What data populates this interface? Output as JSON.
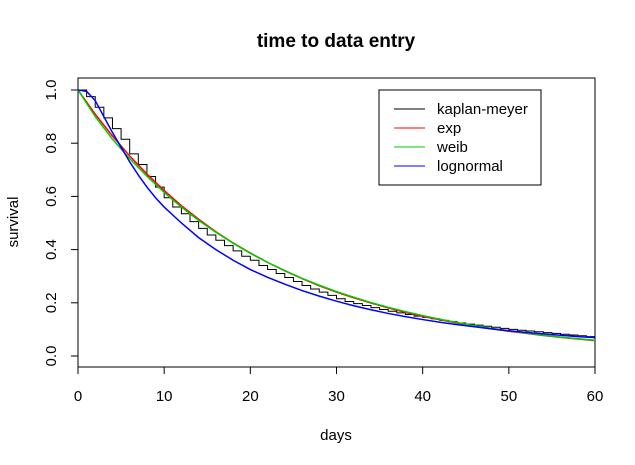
{
  "chart_data": {
    "type": "line",
    "title": "time to data entry",
    "xlabel": "days",
    "ylabel": "survival",
    "xlim": [
      0,
      60
    ],
    "ylim": [
      0,
      1
    ],
    "xticks": [
      "0",
      "10",
      "20",
      "30",
      "40",
      "50",
      "60"
    ],
    "yticks": [
      "0.0",
      "0.2",
      "0.4",
      "0.6",
      "0.8",
      "1.0"
    ],
    "grid": false,
    "legend_position": "top-right",
    "series": [
      {
        "name": "kaplan-meyer",
        "color": "#000000",
        "style": "step",
        "x": [
          0,
          1,
          2,
          3,
          4,
          5,
          6,
          7,
          8,
          9,
          10,
          11,
          12,
          13,
          14,
          15,
          16,
          17,
          18,
          19,
          20,
          21,
          22,
          23,
          24,
          25,
          26,
          27,
          28,
          29,
          30,
          31,
          32,
          33,
          34,
          35,
          36,
          37,
          38,
          39,
          40,
          41,
          42,
          43,
          44,
          45,
          46,
          47,
          48,
          49,
          50,
          51,
          52,
          53,
          54,
          55,
          56,
          57,
          58,
          59,
          60
        ],
        "y": [
          1.0,
          0.975,
          0.935,
          0.895,
          0.855,
          0.815,
          0.76,
          0.72,
          0.675,
          0.635,
          0.595,
          0.56,
          0.535,
          0.505,
          0.48,
          0.455,
          0.435,
          0.415,
          0.395,
          0.375,
          0.36,
          0.34,
          0.325,
          0.31,
          0.295,
          0.28,
          0.265,
          0.252,
          0.24,
          0.228,
          0.215,
          0.205,
          0.197,
          0.19,
          0.182,
          0.175,
          0.168,
          0.162,
          0.156,
          0.15,
          0.145,
          0.14,
          0.134,
          0.129,
          0.124,
          0.12,
          0.116,
          0.112,
          0.108,
          0.104,
          0.1,
          0.097,
          0.094,
          0.091,
          0.088,
          0.085,
          0.082,
          0.079,
          0.076,
          0.073,
          0.07
        ]
      },
      {
        "name": "exp",
        "color": "#ff0000",
        "style": "line",
        "x": [
          0,
          2,
          4,
          6,
          8,
          10,
          12,
          14,
          16,
          18,
          20,
          22,
          24,
          26,
          28,
          30,
          32,
          34,
          36,
          38,
          40,
          42,
          44,
          46,
          48,
          50,
          52,
          54,
          56,
          58,
          60
        ],
        "y": [
          1.0,
          0.909,
          0.827,
          0.752,
          0.684,
          0.622,
          0.565,
          0.514,
          0.467,
          0.425,
          0.387,
          0.352,
          0.32,
          0.291,
          0.264,
          0.24,
          0.219,
          0.199,
          0.181,
          0.164,
          0.149,
          0.136,
          0.124,
          0.112,
          0.102,
          0.093,
          0.085,
          0.077,
          0.07,
          0.064,
          0.058
        ]
      },
      {
        "name": "weib",
        "color": "#00cc00",
        "style": "line",
        "x": [
          0,
          2,
          4,
          6,
          8,
          10,
          12,
          14,
          16,
          18,
          20,
          22,
          24,
          26,
          28,
          30,
          32,
          34,
          36,
          38,
          40,
          42,
          44,
          46,
          48,
          50,
          52,
          54,
          56,
          58,
          60
        ],
        "y": [
          1.0,
          0.9,
          0.815,
          0.742,
          0.676,
          0.615,
          0.56,
          0.51,
          0.465,
          0.424,
          0.386,
          0.352,
          0.321,
          0.292,
          0.266,
          0.242,
          0.221,
          0.201,
          0.183,
          0.167,
          0.152,
          0.138,
          0.126,
          0.114,
          0.104,
          0.095,
          0.086,
          0.078,
          0.071,
          0.065,
          0.059
        ]
      },
      {
        "name": "lognormal",
        "color": "#0000ff",
        "style": "line",
        "x": [
          0,
          1,
          2,
          3,
          4,
          5,
          6,
          7,
          8,
          9,
          10,
          12,
          14,
          16,
          18,
          20,
          22,
          24,
          26,
          28,
          30,
          32,
          34,
          36,
          38,
          40,
          42,
          44,
          46,
          48,
          50,
          52,
          54,
          56,
          58,
          60
        ],
        "y": [
          1.0,
          0.995,
          0.96,
          0.9,
          0.84,
          0.785,
          0.73,
          0.68,
          0.635,
          0.595,
          0.56,
          0.5,
          0.445,
          0.4,
          0.36,
          0.325,
          0.296,
          0.27,
          0.246,
          0.225,
          0.206,
          0.189,
          0.174,
          0.16,
          0.148,
          0.137,
          0.127,
          0.118,
          0.11,
          0.102,
          0.095,
          0.089,
          0.083,
          0.078,
          0.073,
          0.069
        ]
      }
    ]
  }
}
